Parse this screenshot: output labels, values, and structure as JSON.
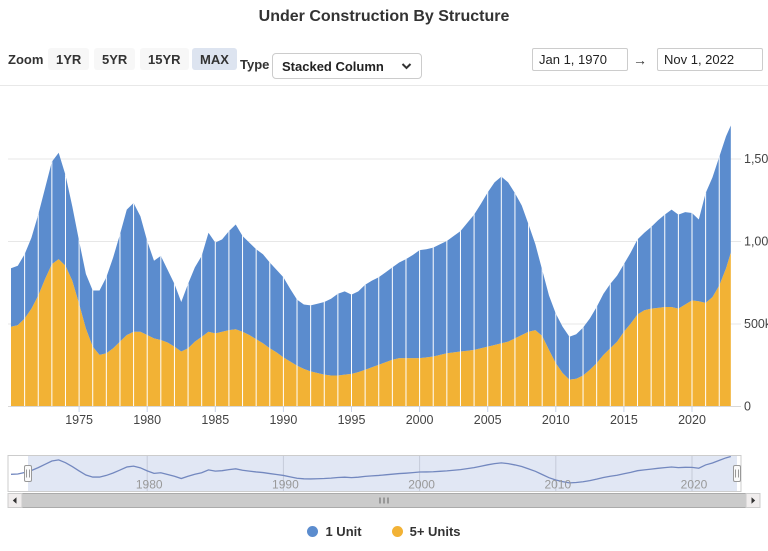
{
  "title": "Under Construction By Structure",
  "toolbar": {
    "zoom_label": "Zoom",
    "zoom_buttons": [
      {
        "label": "1YR",
        "selected": false
      },
      {
        "label": "5YR",
        "selected": false
      },
      {
        "label": "15YR",
        "selected": false
      },
      {
        "label": "MAX",
        "selected": true
      }
    ],
    "type_label": "Type",
    "type_value": "Stacked Column",
    "date_from": "Jan 1, 1970",
    "range_arrow": "→",
    "date_to": "Nov 1, 2022"
  },
  "colors": {
    "series_1unit": "#5b8cce",
    "series_5plus": "#f2b235",
    "zoom_selected_bg": "#dde4f0",
    "navigator_mask": "#e1e7f4",
    "navigator_line": "#7388bf",
    "gridline": "#e7e7e7",
    "axis_text": "#444444",
    "navigator_label": "#999999"
  },
  "chart_data": {
    "type": "bar",
    "stacked": true,
    "title": "Under Construction By Structure",
    "xlabel": "",
    "ylabel": "",
    "value_unit": "thousands of housing units",
    "ylim": [
      0,
      1700
    ],
    "yticks": [
      {
        "value": 0,
        "label": "0"
      },
      {
        "value": 500,
        "label": "500k"
      },
      {
        "value": 1000,
        "label": "1,000k"
      },
      {
        "value": 1500,
        "label": "1,500k"
      }
    ],
    "xticks": [
      1975,
      1980,
      1985,
      1990,
      1995,
      2000,
      2005,
      2010,
      2015,
      2020
    ],
    "x_range": [
      "Jan 1, 1970",
      "Nov 1, 2022"
    ],
    "x": [
      1970,
      1970.5,
      1971,
      1971.5,
      1972,
      1972.5,
      1973,
      1973.5,
      1974,
      1974.5,
      1975,
      1975.5,
      1976,
      1976.5,
      1977,
      1977.5,
      1978,
      1978.5,
      1979,
      1979.5,
      1980,
      1980.5,
      1981,
      1981.5,
      1982,
      1982.5,
      1983,
      1983.5,
      1984,
      1984.5,
      1985,
      1985.5,
      1986,
      1986.5,
      1987,
      1987.5,
      1988,
      1988.5,
      1989,
      1989.5,
      1990,
      1990.5,
      1991,
      1991.5,
      1992,
      1992.5,
      1993,
      1993.5,
      1994,
      1994.5,
      1995,
      1995.5,
      1996,
      1996.5,
      1997,
      1997.5,
      1998,
      1998.5,
      1999,
      1999.5,
      2000,
      2000.5,
      2001,
      2001.5,
      2002,
      2002.5,
      2003,
      2003.5,
      2004,
      2004.5,
      2005,
      2005.5,
      2006,
      2006.5,
      2007,
      2007.5,
      2008,
      2008.5,
      2009,
      2009.5,
      2010,
      2010.5,
      2011,
      2011.5,
      2012,
      2012.5,
      2013,
      2013.5,
      2014,
      2014.5,
      2015,
      2015.5,
      2016,
      2016.5,
      2017,
      2017.5,
      2018,
      2018.5,
      2019,
      2019.5,
      2020,
      2020.5,
      2021,
      2021.5,
      2022,
      2022.5,
      2022.85
    ],
    "series": [
      {
        "name": "5+ Units",
        "color": "#f2b235",
        "values": [
          480,
          490,
          530,
          590,
          670,
          770,
          860,
          890,
          850,
          760,
          620,
          470,
          360,
          310,
          320,
          350,
          390,
          430,
          450,
          450,
          430,
          410,
          400,
          385,
          360,
          330,
          350,
          390,
          420,
          450,
          440,
          450,
          460,
          465,
          450,
          430,
          405,
          380,
          350,
          325,
          295,
          270,
          245,
          225,
          210,
          200,
          190,
          185,
          185,
          190,
          195,
          205,
          220,
          235,
          250,
          265,
          280,
          290,
          290,
          290,
          290,
          295,
          300,
          310,
          320,
          325,
          330,
          335,
          340,
          350,
          360,
          370,
          380,
          390,
          410,
          430,
          450,
          460,
          425,
          340,
          260,
          200,
          160,
          165,
          185,
          220,
          260,
          310,
          350,
          390,
          450,
          500,
          555,
          580,
          590,
          595,
          600,
          600,
          590,
          615,
          640,
          635,
          625,
          660,
          730,
          835,
          930
        ]
      },
      {
        "name": "1 Unit",
        "color": "#5b8cce",
        "values": [
          355,
          360,
          390,
          430,
          490,
          550,
          620,
          645,
          550,
          450,
          380,
          330,
          340,
          390,
          460,
          550,
          650,
          760,
          780,
          700,
          570,
          470,
          510,
          440,
          380,
          300,
          390,
          450,
          490,
          600,
          550,
          560,
          600,
          635,
          580,
          560,
          545,
          540,
          520,
          500,
          485,
          440,
          400,
          390,
          400,
          420,
          440,
          465,
          495,
          505,
          480,
          490,
          515,
          525,
          530,
          545,
          560,
          580,
          600,
          625,
          655,
          655,
          660,
          670,
          680,
          705,
          730,
          775,
          820,
          875,
          935,
          985,
          1010,
          965,
          880,
          785,
          650,
          520,
          400,
          330,
          300,
          280,
          260,
          270,
          290,
          310,
          340,
          370,
          390,
          400,
          410,
          430,
          455,
          470,
          495,
          530,
          560,
          590,
          570,
          560,
          530,
          495,
          665,
          725,
          780,
          800,
          770
        ]
      }
    ],
    "legend_position": "bottom"
  },
  "navigator": {
    "labels": [
      "1980",
      "1990",
      "2000",
      "2010",
      "2020"
    ]
  },
  "legend": {
    "items": [
      {
        "label": "1 Unit",
        "color": "#5b8cce"
      },
      {
        "label": "5+ Units",
        "color": "#f2b235"
      }
    ]
  }
}
